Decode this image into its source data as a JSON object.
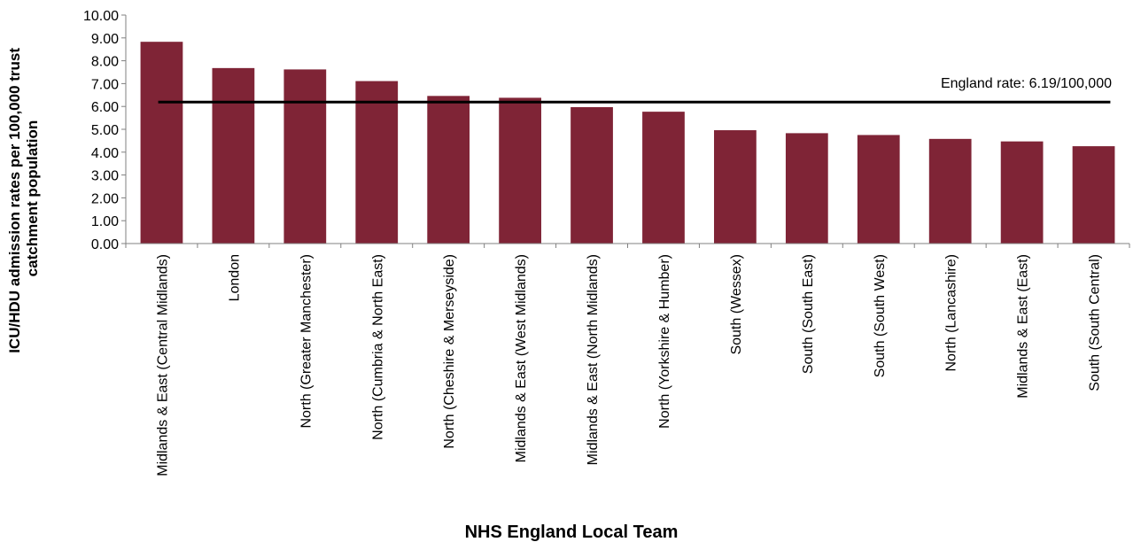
{
  "chart_data": {
    "type": "bar",
    "title": "",
    "xlabel": "NHS England Local Team",
    "ylabel_lines": [
      "ICU/HDU  admission rates per 100,000 trust",
      "catchment population"
    ],
    "ylim": [
      0,
      10
    ],
    "ytick_values": [
      0,
      1,
      2,
      3,
      4,
      5,
      6,
      7,
      8,
      9,
      10
    ],
    "ytick_labels": [
      "0.00",
      "1.00",
      "2.00",
      "3.00",
      "4.00",
      "5.00",
      "6.00",
      "7.00",
      "8.00",
      "9.00",
      "10.00"
    ],
    "categories": [
      "Midlands & East (Central Midlands)",
      "London",
      "North (Greater Manchester)",
      "North (Cumbria & North East)",
      "North (Cheshire & Merseyside)",
      "Midlands & East (West Midlands)",
      "Midlands & East (North Midlands)",
      "North (Yorkshire & Humber)",
      "South (Wessex)",
      "South (South East)",
      "South (South West)",
      "North (Lancashire)",
      "Midlands & East (East)",
      "South (South Central)"
    ],
    "values": [
      8.83,
      7.68,
      7.62,
      7.11,
      6.46,
      6.38,
      5.97,
      5.77,
      4.96,
      4.83,
      4.75,
      4.58,
      4.47,
      4.26
    ],
    "reference_line": {
      "value": 6.19,
      "label": "England rate: 6.19/100,000"
    },
    "bar_color": "#7f2436",
    "line_color": "#000000",
    "grid": false,
    "legend": "none"
  }
}
